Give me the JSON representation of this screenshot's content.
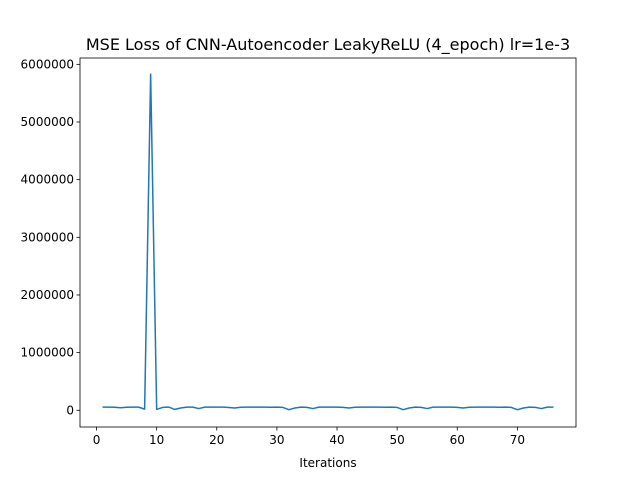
{
  "chart_data": {
    "type": "line",
    "title": "MSE Loss of CNN-Autoencoder LeakyReLU (4_epoch) lr=1e-3",
    "xlabel": "Iterations",
    "ylabel": "",
    "xlim": [
      -2.75,
      79.75
    ],
    "ylim": [
      -290000,
      6110000
    ],
    "xticks": [
      0,
      10,
      20,
      30,
      40,
      50,
      60,
      70
    ],
    "yticks": [
      0,
      1000000,
      2000000,
      3000000,
      4000000,
      5000000,
      6000000
    ],
    "grid": false,
    "series": [
      {
        "color": "#1f77b4",
        "x": [
          1,
          2,
          3,
          4,
          5,
          6,
          7,
          8,
          9,
          10,
          11,
          12,
          13,
          14,
          15,
          16,
          17,
          18,
          19,
          20,
          21,
          22,
          23,
          24,
          25,
          26,
          27,
          28,
          29,
          30,
          31,
          32,
          33,
          34,
          35,
          36,
          37,
          38,
          39,
          40,
          41,
          42,
          43,
          44,
          45,
          46,
          47,
          48,
          49,
          50,
          51,
          52,
          53,
          54,
          55,
          56,
          57,
          58,
          59,
          60,
          61,
          62,
          63,
          64,
          65,
          66,
          67,
          68,
          69,
          70,
          71,
          72,
          73,
          74,
          75,
          76
        ],
        "values": [
          55000,
          55000,
          52000,
          45000,
          52000,
          55000,
          55000,
          20000,
          5830000,
          15000,
          50000,
          55000,
          15000,
          40000,
          55000,
          55000,
          30000,
          55000,
          55000,
          55000,
          55000,
          48000,
          40000,
          52000,
          55000,
          55000,
          55000,
          55000,
          52000,
          55000,
          50000,
          10000,
          40000,
          55000,
          50000,
          30000,
          55000,
          55000,
          55000,
          55000,
          50000,
          40000,
          52000,
          55000,
          55000,
          55000,
          55000,
          52000,
          55000,
          50000,
          10000,
          40000,
          55000,
          50000,
          30000,
          55000,
          55000,
          55000,
          55000,
          50000,
          40000,
          52000,
          55000,
          55000,
          55000,
          55000,
          52000,
          55000,
          50000,
          10000,
          40000,
          55000,
          50000,
          30000,
          55000,
          55000
        ]
      }
    ]
  }
}
